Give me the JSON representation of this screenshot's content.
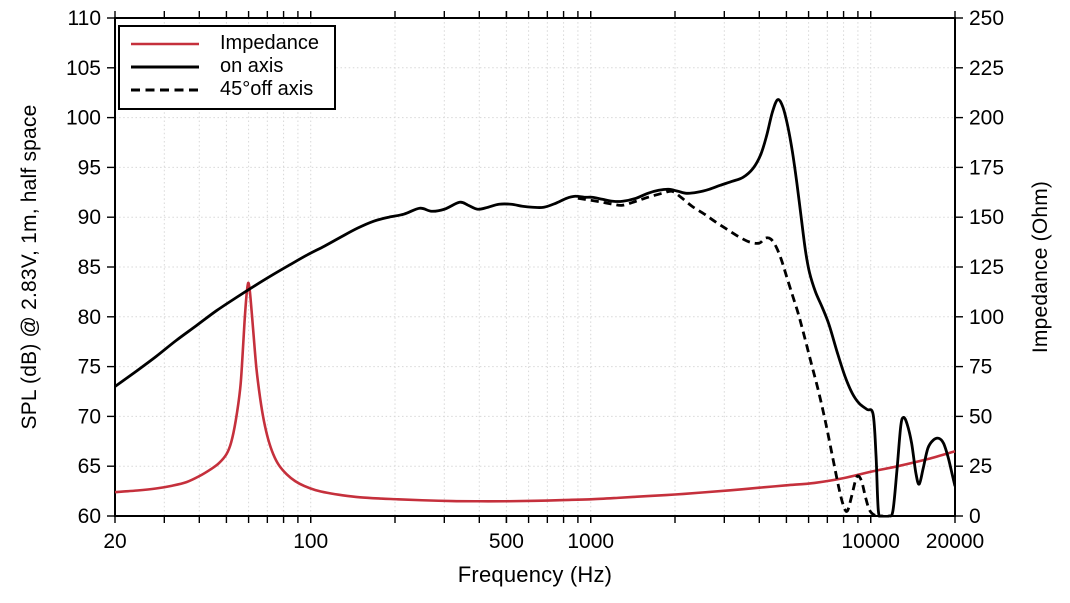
{
  "chart_data": {
    "type": "line",
    "title": "",
    "x_axis": {
      "label": "Frequency (Hz)",
      "scale": "log",
      "min": 20,
      "max": 20000,
      "major_tick_values": [
        20,
        100,
        500,
        1000,
        10000,
        20000
      ],
      "major_tick_labels": [
        "20",
        "100",
        "500",
        "1000",
        "10000",
        "20000"
      ],
      "grid_values": [
        30,
        40,
        50,
        60,
        70,
        80,
        90,
        100,
        200,
        300,
        400,
        500,
        600,
        700,
        800,
        900,
        1000,
        2000,
        3000,
        4000,
        5000,
        6000,
        7000,
        8000,
        9000,
        10000
      ]
    },
    "y_axis_left": {
      "label": "SPL (dB) @ 2.83V, 1m, half space",
      "min": 60,
      "max": 110,
      "tick_values": [
        60,
        65,
        70,
        75,
        80,
        85,
        90,
        95,
        100,
        105,
        110
      ],
      "tick_labels": [
        "60",
        "65",
        "70",
        "75",
        "80",
        "85",
        "90",
        "95",
        "100",
        "105",
        "110"
      ]
    },
    "y_axis_right": {
      "label": "Impedance (Ohm)",
      "min": 0,
      "max": 250,
      "tick_values": [
        0,
        25,
        50,
        75,
        100,
        125,
        150,
        175,
        200,
        225,
        250
      ],
      "tick_labels": [
        "0",
        "25",
        "50",
        "75",
        "100",
        "125",
        "150",
        "175",
        "200",
        "225",
        "250"
      ]
    },
    "grid": {
      "show": true,
      "color": "#d8d8d8",
      "dash": "1.5 2.6"
    },
    "legend": {
      "position": "top-left",
      "items": [
        {
          "label": "Impedance",
          "color": "#c5303c",
          "dash": "solid"
        },
        {
          "label": "on axis",
          "color": "#000000",
          "dash": "solid"
        },
        {
          "label": "45°off axis",
          "color": "#000000",
          "dash": "dashed"
        }
      ]
    },
    "series": [
      {
        "name": "Impedance",
        "axis": "right",
        "color": "#c5303c",
        "dash": "solid",
        "unit": "Ohm",
        "points": [
          [
            20,
            12
          ],
          [
            24,
            12.8
          ],
          [
            28,
            13.8
          ],
          [
            32,
            15.2
          ],
          [
            36,
            17
          ],
          [
            40,
            20
          ],
          [
            44,
            23.5
          ],
          [
            47,
            26.5
          ],
          [
            50,
            31
          ],
          [
            52,
            37
          ],
          [
            54,
            48
          ],
          [
            56,
            64
          ],
          [
            57,
            79
          ],
          [
            58,
            97
          ],
          [
            59,
            111
          ],
          [
            59.8,
            117
          ],
          [
            60.6,
            113
          ],
          [
            61.5,
            103
          ],
          [
            62.5,
            91
          ],
          [
            64,
            74
          ],
          [
            66,
            59
          ],
          [
            68,
            48
          ],
          [
            70.5,
            38.5
          ],
          [
            73.5,
            31
          ],
          [
            77,
            25.5
          ],
          [
            82,
            21
          ],
          [
            88,
            17.5
          ],
          [
            95,
            15
          ],
          [
            104,
            13
          ],
          [
            115,
            11.6
          ],
          [
            130,
            10.4
          ],
          [
            150,
            9.4
          ],
          [
            175,
            8.8
          ],
          [
            205,
            8.4
          ],
          [
            250,
            7.9
          ],
          [
            320,
            7.5
          ],
          [
            400,
            7.4
          ],
          [
            500,
            7.4
          ],
          [
            630,
            7.6
          ],
          [
            800,
            8
          ],
          [
            1000,
            8.4
          ],
          [
            1250,
            9.1
          ],
          [
            1600,
            10
          ],
          [
            2000,
            10.8
          ],
          [
            2500,
            11.8
          ],
          [
            3150,
            12.9
          ],
          [
            4000,
            14.2
          ],
          [
            5000,
            15.4
          ],
          [
            6300,
            16.6
          ],
          [
            8000,
            19
          ],
          [
            10000,
            22.2
          ],
          [
            12500,
            25
          ],
          [
            16000,
            28.6
          ],
          [
            20000,
            32.5
          ]
        ]
      },
      {
        "name": "on axis",
        "axis": "left",
        "color": "#000000",
        "dash": "solid",
        "unit": "dB",
        "points": [
          [
            20,
            73
          ],
          [
            24,
            74.6
          ],
          [
            28,
            76
          ],
          [
            33,
            77.6
          ],
          [
            39,
            79.1
          ],
          [
            46,
            80.6
          ],
          [
            54,
            81.9
          ],
          [
            63,
            83.1
          ],
          [
            73,
            84.2
          ],
          [
            84,
            85.2
          ],
          [
            97,
            86.2
          ],
          [
            112,
            87.1
          ],
          [
            128,
            88
          ],
          [
            147,
            88.9
          ],
          [
            168,
            89.6
          ],
          [
            190,
            90
          ],
          [
            215,
            90.3
          ],
          [
            245,
            90.9
          ],
          [
            270,
            90.6
          ],
          [
            300,
            90.8
          ],
          [
            340,
            91.5
          ],
          [
            365,
            91.2
          ],
          [
            395,
            90.8
          ],
          [
            430,
            91
          ],
          [
            470,
            91.3
          ],
          [
            520,
            91.3
          ],
          [
            570,
            91.1
          ],
          [
            620,
            91
          ],
          [
            680,
            91
          ],
          [
            750,
            91.4
          ],
          [
            820,
            91.9
          ],
          [
            880,
            92.1
          ],
          [
            950,
            92
          ],
          [
            1010,
            92
          ],
          [
            1100,
            91.8
          ],
          [
            1200,
            91.6
          ],
          [
            1300,
            91.6
          ],
          [
            1450,
            91.9
          ],
          [
            1600,
            92.4
          ],
          [
            1750,
            92.7
          ],
          [
            1900,
            92.8
          ],
          [
            2050,
            92.6
          ],
          [
            2200,
            92.4
          ],
          [
            2400,
            92.5
          ],
          [
            2650,
            92.8
          ],
          [
            2900,
            93.2
          ],
          [
            3200,
            93.6
          ],
          [
            3500,
            94
          ],
          [
            3800,
            94.9
          ],
          [
            4050,
            96.3
          ],
          [
            4250,
            98.2
          ],
          [
            4450,
            100.5
          ],
          [
            4650,
            101.8
          ],
          [
            4850,
            101.1
          ],
          [
            5050,
            99.2
          ],
          [
            5250,
            96.6
          ],
          [
            5450,
            93.4
          ],
          [
            5650,
            89.9
          ],
          [
            5850,
            86.6
          ],
          [
            6050,
            84.4
          ],
          [
            6350,
            82.5
          ],
          [
            6700,
            81
          ],
          [
            7100,
            79.2
          ],
          [
            7600,
            76.4
          ],
          [
            8100,
            74
          ],
          [
            8600,
            72.3
          ],
          [
            9100,
            71.3
          ],
          [
            9700,
            70.7
          ],
          [
            10200,
            70.2
          ],
          [
            10450,
            66
          ],
          [
            10650,
            60.5
          ],
          [
            11000,
            60
          ],
          [
            11600,
            60
          ],
          [
            12000,
            60.5
          ],
          [
            12400,
            64.5
          ],
          [
            12800,
            69
          ],
          [
            13100,
            69.9
          ],
          [
            13500,
            69.2
          ],
          [
            14000,
            67.3
          ],
          [
            14500,
            64.3
          ],
          [
            14900,
            63.2
          ],
          [
            15400,
            64.8
          ],
          [
            16000,
            66.8
          ],
          [
            16700,
            67.6
          ],
          [
            17500,
            67.8
          ],
          [
            18200,
            67.3
          ],
          [
            18900,
            65.9
          ],
          [
            19500,
            64.3
          ],
          [
            20000,
            63
          ]
        ]
      },
      {
        "name": "45°off axis",
        "axis": "left",
        "color": "#000000",
        "dash": "dashed",
        "unit": "dB",
        "points": [
          [
            900,
            91.9
          ],
          [
            1000,
            91.7
          ],
          [
            1100,
            91.5
          ],
          [
            1200,
            91.3
          ],
          [
            1300,
            91.2
          ],
          [
            1450,
            91.6
          ],
          [
            1600,
            92
          ],
          [
            1800,
            92.4
          ],
          [
            1950,
            92.6
          ],
          [
            2100,
            92
          ],
          [
            2300,
            91.1
          ],
          [
            2550,
            90.3
          ],
          [
            2800,
            89.5
          ],
          [
            3100,
            88.7
          ],
          [
            3400,
            88
          ],
          [
            3700,
            87.5
          ],
          [
            4000,
            87.4
          ],
          [
            4200,
            87.9
          ],
          [
            4400,
            87.8
          ],
          [
            4600,
            87
          ],
          [
            4800,
            85.7
          ],
          [
            5000,
            84.1
          ],
          [
            5250,
            82.2
          ],
          [
            5500,
            80.4
          ],
          [
            5800,
            78
          ],
          [
            6150,
            75.2
          ],
          [
            6500,
            72.6
          ],
          [
            6900,
            69.4
          ],
          [
            7300,
            66
          ],
          [
            7700,
            62.8
          ],
          [
            8000,
            61
          ],
          [
            8250,
            60.5
          ],
          [
            8550,
            62
          ],
          [
            8850,
            63.7
          ],
          [
            9050,
            64
          ],
          [
            9300,
            63.4
          ],
          [
            9600,
            61.8
          ],
          [
            9900,
            60.6
          ],
          [
            10300,
            60.1
          ],
          [
            10900,
            60
          ]
        ]
      }
    ]
  }
}
